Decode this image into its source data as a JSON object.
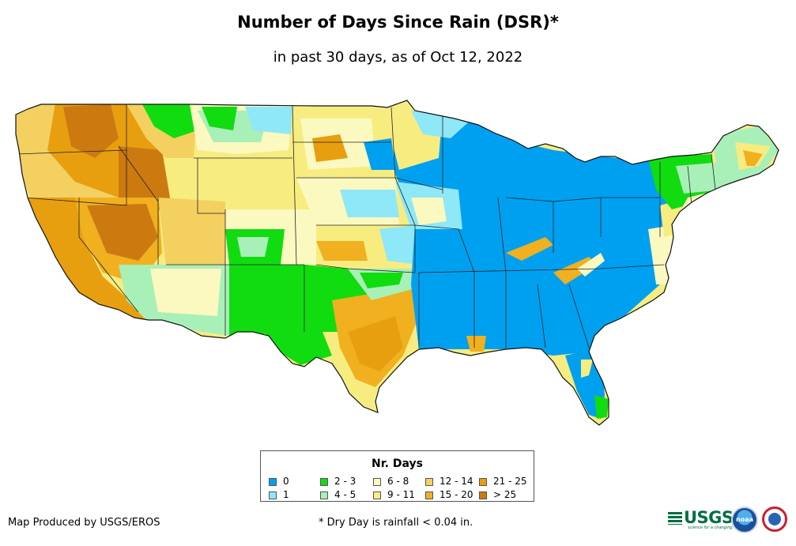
{
  "title": "Number of Days Since Rain (DSR)*",
  "subtitle": "in past 30 days, as of Oct 12, 2022",
  "legend": {
    "title": "Nr. Days",
    "items": [
      {
        "label": "0",
        "color": "#00a0f0"
      },
      {
        "label": "1",
        "color": "#8ee8f8"
      },
      {
        "label": "2 - 3",
        "color": "#10dc10"
      },
      {
        "label": "4 - 5",
        "color": "#a8f0b8"
      },
      {
        "label": "6 - 8",
        "color": "#fbf8c0"
      },
      {
        "label": "9 - 11",
        "color": "#f7ec80"
      },
      {
        "label": "12 - 14",
        "color": "#f3d060"
      },
      {
        "label": "15 - 20",
        "color": "#f0b020"
      },
      {
        "label": "21 - 25",
        "color": "#e79f10"
      },
      {
        "label": "> 25",
        "color": "#cc7a10"
      }
    ]
  },
  "footer": {
    "producer": "Map Produced by USGS/EROS",
    "note": "* Dry Day is rainfall < 0.04 in."
  },
  "logos": {
    "usgs": "USGS",
    "usgs_tagline": "science for a changing world",
    "noaa": "noaa"
  }
}
